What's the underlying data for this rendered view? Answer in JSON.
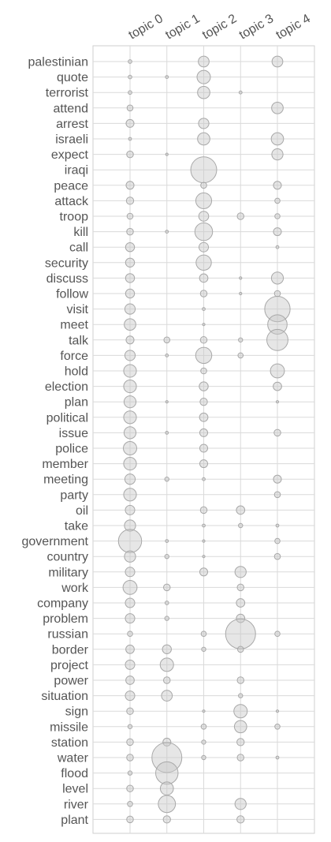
{
  "chart_data": {
    "type": "bubble",
    "grid": true,
    "topics": [
      "topic 0",
      "topic 1",
      "topic 2",
      "topic 3",
      "topic 4"
    ],
    "words": [
      "palestinian",
      "quote",
      "terrorist",
      "attend",
      "arrest",
      "israeli",
      "expect",
      "iraqi",
      "peace",
      "attack",
      "troop",
      "kill",
      "call",
      "security",
      "discuss",
      "follow",
      "visit",
      "meet",
      "talk",
      "force",
      "hold",
      "election",
      "plan",
      "political",
      "issue",
      "police",
      "member",
      "meeting",
      "party",
      "oil",
      "take",
      "government",
      "country",
      "military",
      "work",
      "company",
      "problem",
      "russian",
      "border",
      "project",
      "power",
      "situation",
      "sign",
      "missile",
      "station",
      "water",
      "flood",
      "level",
      "river",
      "plant"
    ],
    "values": [
      [
        0.015,
        0,
        0.13,
        0,
        0.13
      ],
      [
        0.015,
        0.01,
        0.2,
        0,
        0
      ],
      [
        0.015,
        0,
        0.17,
        0.01,
        0
      ],
      [
        0.04,
        0,
        0,
        0,
        0.15
      ],
      [
        0.07,
        0,
        0.12,
        0,
        0
      ],
      [
        0.01,
        0,
        0.17,
        0,
        0.17
      ],
      [
        0.05,
        0.005,
        0,
        0,
        0.14
      ],
      [
        0,
        0,
        0.75,
        0,
        0
      ],
      [
        0.07,
        0,
        0.04,
        0,
        0.07
      ],
      [
        0.06,
        0,
        0.28,
        0,
        0.03
      ],
      [
        0.04,
        0,
        0.11,
        0.05,
        0.03
      ],
      [
        0.05,
        0.01,
        0.35,
        0,
        0.07
      ],
      [
        0.09,
        0,
        0.1,
        0,
        0.01
      ],
      [
        0.09,
        0,
        0.26,
        0,
        0
      ],
      [
        0.09,
        0,
        0.08,
        0.005,
        0.16
      ],
      [
        0.09,
        0,
        0.05,
        0.005,
        0.04
      ],
      [
        0.12,
        0,
        0.01,
        0,
        0.72
      ],
      [
        0.15,
        0,
        0.005,
        0,
        0.42
      ],
      [
        0.07,
        0.04,
        0.05,
        0.02,
        0.5
      ],
      [
        0.12,
        0.01,
        0.29,
        0.03,
        0
      ],
      [
        0.18,
        0,
        0.04,
        0,
        0.22
      ],
      [
        0.18,
        0,
        0.09,
        0,
        0.08
      ],
      [
        0.16,
        0.005,
        0.06,
        0,
        0.005
      ],
      [
        0.18,
        0,
        0.08,
        0,
        0
      ],
      [
        0.16,
        0.01,
        0.07,
        0,
        0.05
      ],
      [
        0.2,
        0,
        0.07,
        0,
        0
      ],
      [
        0.18,
        0,
        0.07,
        0,
        0
      ],
      [
        0.12,
        0.02,
        0.01,
        0,
        0.07
      ],
      [
        0.18,
        0,
        0,
        0,
        0.04
      ],
      [
        0.1,
        0,
        0.05,
        0.08,
        0
      ],
      [
        0.14,
        0,
        0.01,
        0.02,
        0.01
      ],
      [
        0.6,
        0.01,
        0.005,
        0,
        0.03
      ],
      [
        0.14,
        0.02,
        0.005,
        0,
        0.04
      ],
      [
        0.1,
        0,
        0.07,
        0.14,
        0
      ],
      [
        0.22,
        0.05,
        0,
        0.05,
        0
      ],
      [
        0.1,
        0.015,
        0,
        0.08,
        0
      ],
      [
        0.1,
        0.02,
        0,
        0.08,
        0
      ],
      [
        0.03,
        0,
        0.03,
        1.0,
        0.03
      ],
      [
        0.08,
        0.09,
        0.02,
        0.04,
        0
      ],
      [
        0.1,
        0.2,
        0,
        0,
        0
      ],
      [
        0.08,
        0.05,
        0,
        0.05,
        0
      ],
      [
        0.1,
        0.13,
        0,
        0.02,
        0
      ],
      [
        0.05,
        0,
        0.005,
        0.2,
        0.005
      ],
      [
        0.02,
        0,
        0.03,
        0.17,
        0.03
      ],
      [
        0.05,
        0.07,
        0.02,
        0.06,
        0
      ],
      [
        0.05,
        1.0,
        0.02,
        0.05,
        0.01
      ],
      [
        0.02,
        0.56,
        0,
        0,
        0
      ],
      [
        0.05,
        0.19,
        0,
        0,
        0
      ],
      [
        0.03,
        0.33,
        0,
        0.14,
        0
      ],
      [
        0.05,
        0.06,
        0,
        0.06,
        0
      ]
    ],
    "max_radius_px": 19
  }
}
